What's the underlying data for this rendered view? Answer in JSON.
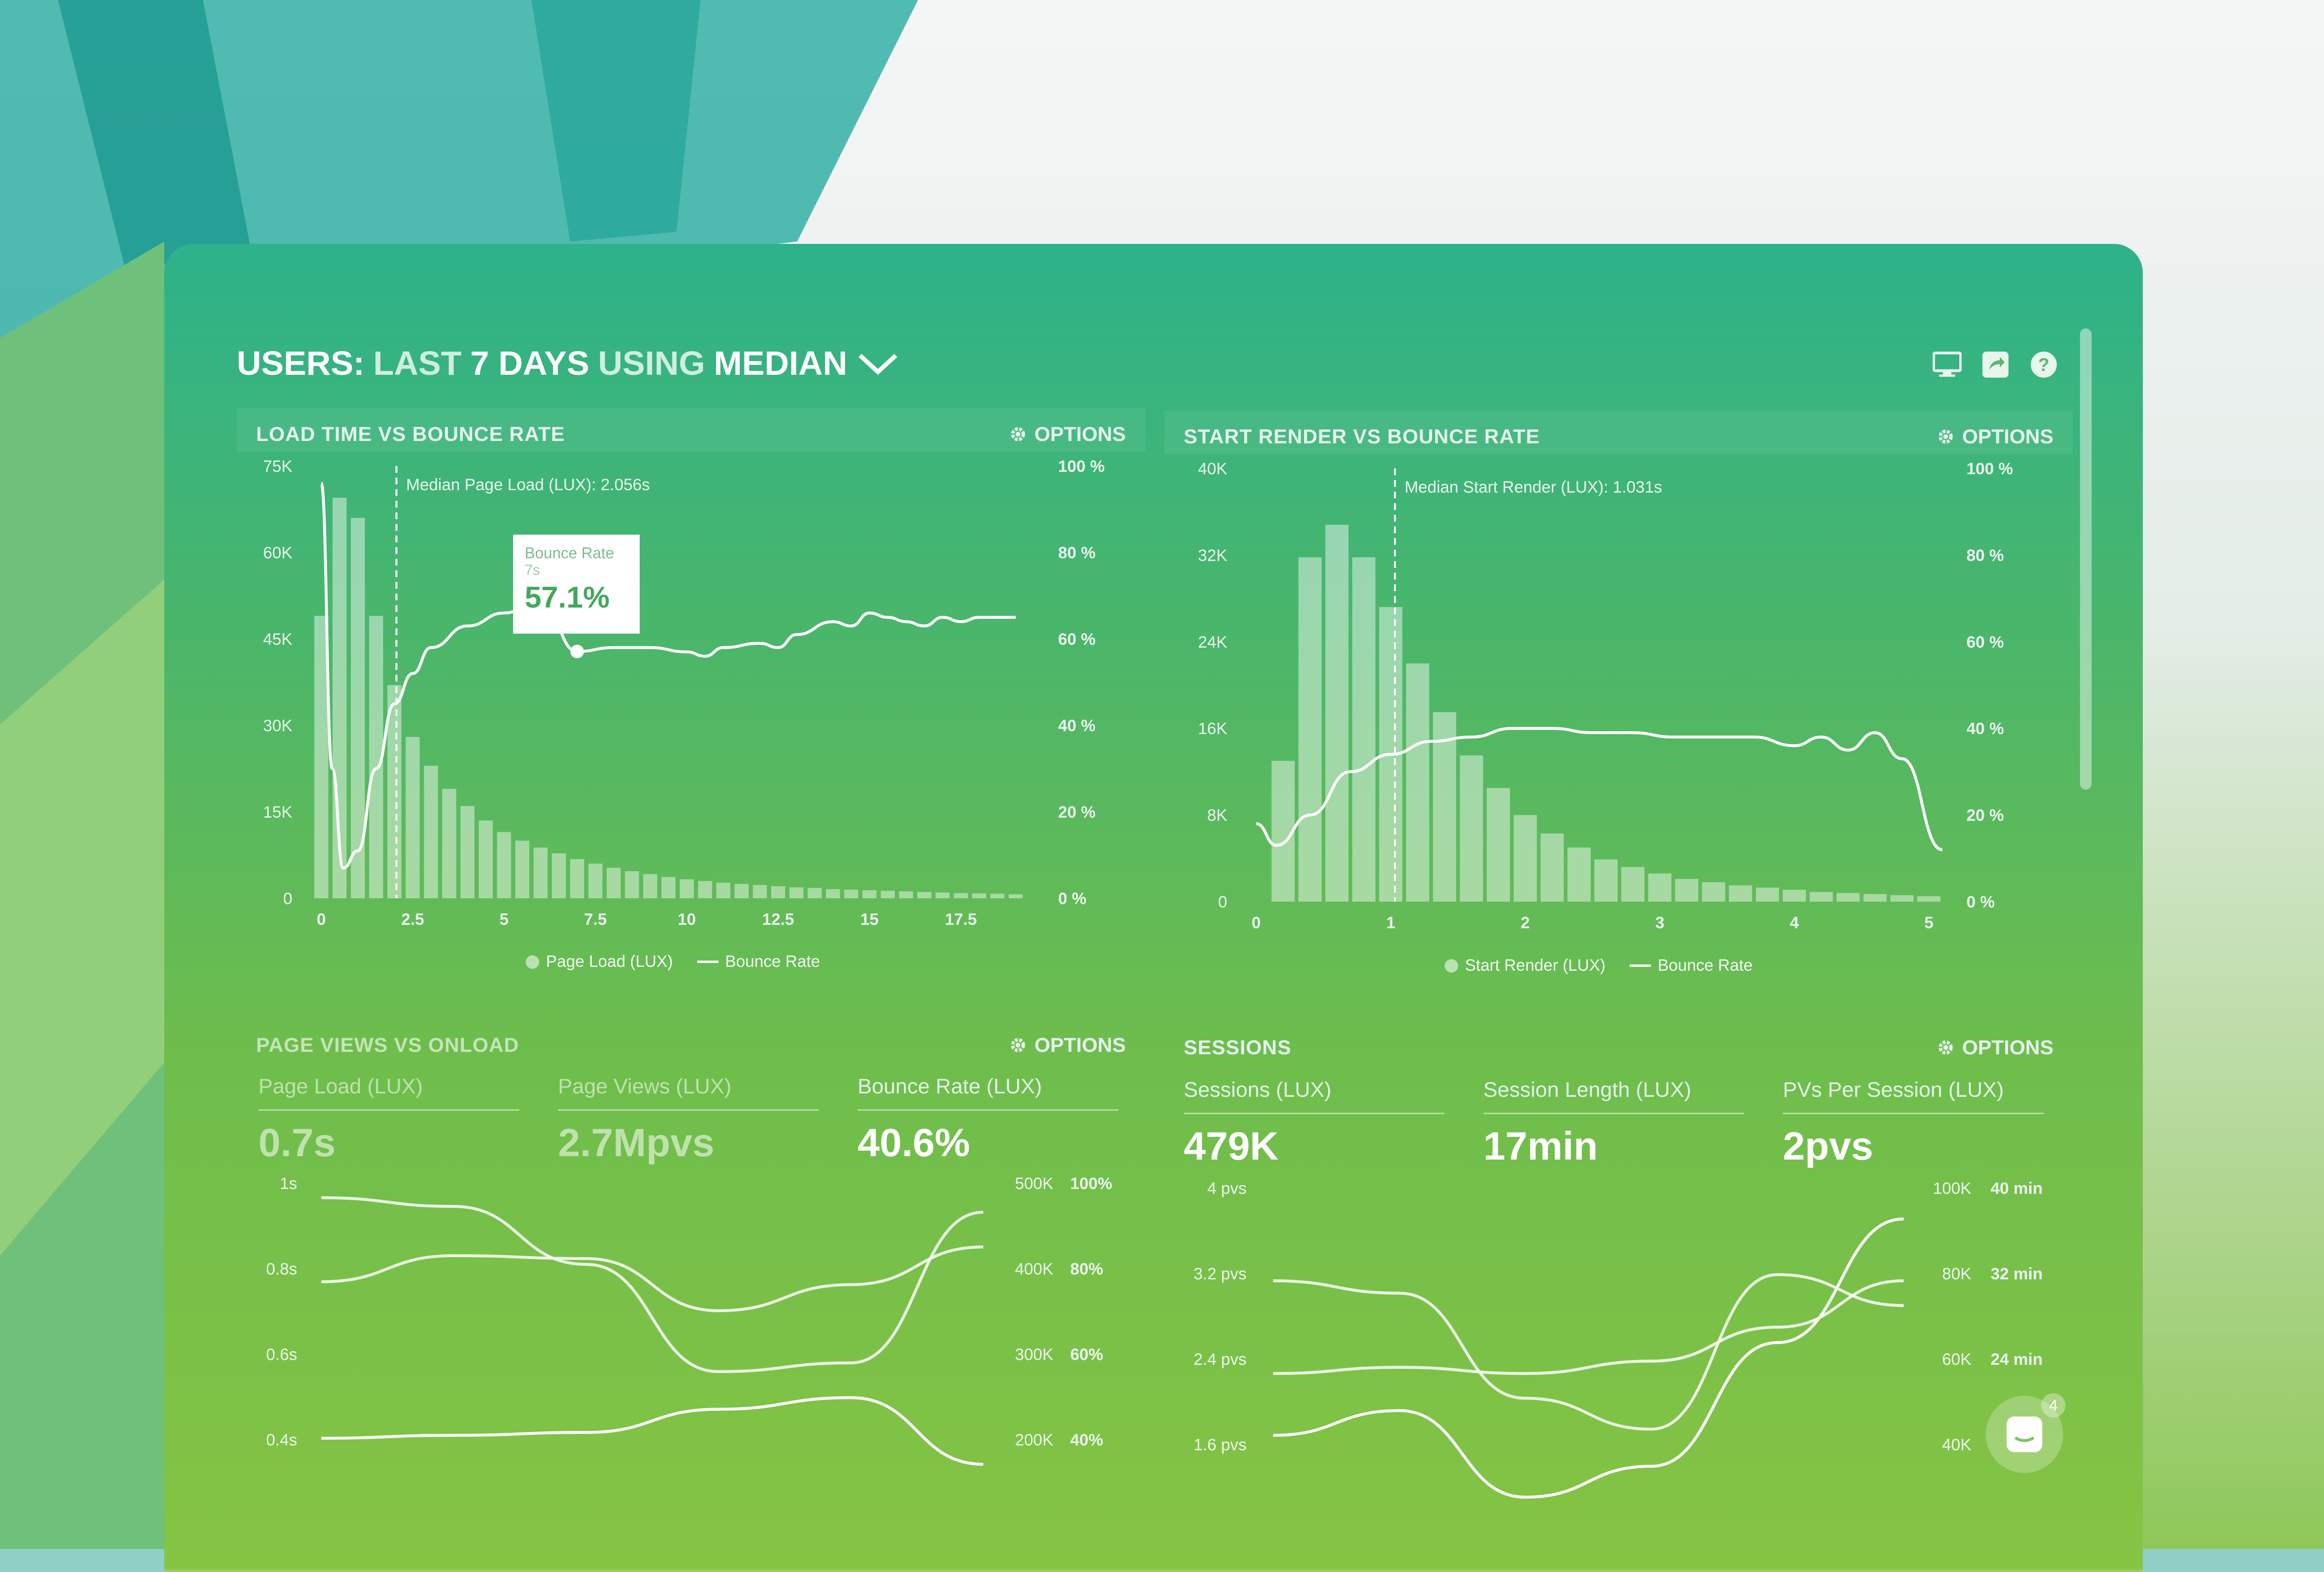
{
  "header": {
    "title_users": "USERS:",
    "title_last": "LAST",
    "title_days": "7 DAYS",
    "title_using": "USING",
    "title_median": "MEDIAN",
    "icons": [
      "monitor-icon",
      "share-icon",
      "help-icon"
    ]
  },
  "options_label": "OPTIONS",
  "panels": {
    "load": {
      "title": "LOAD TIME VS BOUNCE RATE",
      "median_label": "Median Page Load (LUX): 2.056s",
      "legend": [
        "Page Load (LUX)",
        "Bounce Rate"
      ],
      "tooltip": {
        "label": "Bounce Rate",
        "sub": "7s",
        "value": "57.1%"
      }
    },
    "render": {
      "title": "START RENDER VS BOUNCE RATE",
      "median_label": "Median Start Render (LUX): 1.031s",
      "legend": [
        "Start Render (LUX)",
        "Bounce Rate"
      ]
    },
    "pageviews": {
      "title": "PAGE VIEWS VS ONLOAD",
      "stats": [
        {
          "label": "Page Load (LUX)",
          "value": "0.7s"
        },
        {
          "label": "Page Views (LUX)",
          "value": "2.7Mpvs"
        },
        {
          "label": "Bounce Rate (LUX)",
          "value": "40.6%"
        }
      ]
    },
    "sessions": {
      "title": "SESSIONS",
      "stats": [
        {
          "label": "Sessions (LUX)",
          "value": "479K"
        },
        {
          "label": "Session Length (LUX)",
          "value": "17min"
        },
        {
          "label": "PVs Per Session (LUX)",
          "value": "2pvs"
        }
      ]
    }
  },
  "chat_badge": "4",
  "colors": {
    "line": "#ffffff",
    "bar": "rgba(255,255,255,0.45)"
  },
  "chart_data": [
    {
      "type": "bar",
      "title": "LOAD TIME VS BOUNCE RATE",
      "x_ticks": [
        "0",
        "2.5",
        "5",
        "7.5",
        "10",
        "12.5",
        "15",
        "17.5"
      ],
      "y_left_ticks": [
        "0",
        "15K",
        "30K",
        "45K",
        "60K",
        "75K"
      ],
      "y_right_ticks": [
        "0 %",
        "20 %",
        "40 %",
        "60 %",
        "80 %",
        "100 %"
      ],
      "ylim": [
        0,
        75000
      ],
      "series": [
        {
          "name": "Page Load (LUX)",
          "kind": "bar",
          "x": [
            0,
            0.5,
            1,
            1.5,
            2,
            2.5,
            3,
            3.5,
            4,
            4.5,
            5,
            5.5,
            6,
            6.5,
            7,
            7.5,
            8,
            8.5,
            9,
            9.5,
            10,
            10.5,
            11,
            11.5,
            12,
            12.5,
            13,
            13.5,
            14,
            14.5,
            15,
            15.5,
            16,
            16.5,
            17,
            17.5,
            18,
            18.5,
            19
          ],
          "values": [
            49000,
            69500,
            66000,
            49000,
            37000,
            28000,
            23000,
            19000,
            16000,
            13500,
            11500,
            10000,
            8800,
            7800,
            6800,
            6000,
            5300,
            4700,
            4200,
            3700,
            3300,
            3000,
            2700,
            2500,
            2300,
            2100,
            1900,
            1800,
            1600,
            1500,
            1400,
            1300,
            1200,
            1100,
            1000,
            900,
            850,
            800,
            700
          ]
        },
        {
          "name": "Bounce Rate",
          "kind": "line",
          "x": [
            0,
            0.3,
            0.6,
            1,
            1.5,
            2,
            2.5,
            3,
            4,
            5,
            6,
            7,
            8,
            9,
            10,
            10.5,
            11,
            12,
            12.5,
            13,
            14,
            14.5,
            15,
            15.5,
            16,
            16.5,
            17,
            17.5,
            18,
            19
          ],
          "values": [
            96,
            30,
            7,
            11,
            30,
            45,
            52,
            58,
            63,
            66,
            69,
            57.1,
            58,
            58,
            57,
            56,
            58,
            59,
            58,
            61,
            64,
            63,
            66,
            65,
            64,
            63,
            65,
            64,
            65,
            65
          ]
        }
      ]
    },
    {
      "type": "bar",
      "title": "START RENDER VS BOUNCE RATE",
      "x_ticks": [
        "0",
        "1",
        "2",
        "3",
        "4",
        "5"
      ],
      "y_left_ticks": [
        "0",
        "8K",
        "16K",
        "24K",
        "32K",
        "40K"
      ],
      "y_right_ticks": [
        "0 %",
        "20 %",
        "40 %",
        "60 %",
        "80 %",
        "100 %"
      ],
      "ylim": [
        0,
        40000
      ],
      "series": [
        {
          "name": "Start Render (LUX)",
          "kind": "bar",
          "x": [
            0.2,
            0.4,
            0.6,
            0.8,
            1,
            1.2,
            1.4,
            1.6,
            1.8,
            2,
            2.2,
            2.4,
            2.6,
            2.8,
            3,
            3.2,
            3.4,
            3.6,
            3.8,
            4,
            4.2,
            4.4,
            4.6,
            4.8,
            5
          ],
          "values": [
            13000,
            31800,
            34800,
            31800,
            27200,
            22000,
            17500,
            13500,
            10500,
            8000,
            6300,
            5000,
            3900,
            3200,
            2600,
            2100,
            1800,
            1500,
            1300,
            1100,
            900,
            800,
            700,
            600,
            500
          ]
        },
        {
          "name": "Bounce Rate",
          "kind": "line",
          "x": [
            0,
            0.15,
            0.4,
            0.7,
            1,
            1.3,
            1.6,
            1.9,
            2.2,
            2.5,
            2.8,
            3.1,
            3.4,
            3.7,
            4,
            4.2,
            4.4,
            4.6,
            4.8,
            5.1
          ],
          "values": [
            18,
            13,
            20,
            30,
            34,
            37,
            38,
            40,
            40,
            39,
            39,
            38,
            38,
            38,
            36,
            38,
            35,
            39,
            33,
            12
          ]
        }
      ]
    },
    {
      "type": "line",
      "title": "PAGE VIEWS VS ONLOAD",
      "y_left_ticks": [
        "1s",
        "0.8s",
        "0.6s",
        "0.4s"
      ],
      "y_mid_ticks": [
        "500K",
        "400K",
        "300K",
        "200K"
      ],
      "y_right_ticks": [
        "100%",
        "80%",
        "60%",
        "40%"
      ],
      "series": [
        {
          "name": "Page Load (LUX)",
          "values": [
            0.66,
            0.75,
            0.74,
            0.56,
            0.65,
            0.78
          ]
        },
        {
          "name": "Page Views (LUX)",
          "values": [
            0.95,
            0.92,
            0.72,
            0.35,
            0.38,
            0.9
          ]
        },
        {
          "name": "Bounce Rate (LUX)",
          "values": [
            0.12,
            0.13,
            0.14,
            0.22,
            0.26,
            0.03
          ]
        }
      ]
    },
    {
      "type": "line",
      "title": "SESSIONS",
      "y_left_ticks": [
        "4 pvs",
        "3.2 pvs",
        "2.4 pvs",
        "1.6 pvs"
      ],
      "y_mid_ticks": [
        "100K",
        "80K",
        "60K",
        "40K"
      ],
      "y_right_ticks": [
        "40 min",
        "32 min",
        "24 min"
      ],
      "series": [
        {
          "name": "Sessions (LUX)",
          "values": [
            0.7,
            0.66,
            0.32,
            0.22,
            0.72,
            0.62
          ]
        },
        {
          "name": "Session Length (LUX)",
          "values": [
            0.4,
            0.42,
            0.4,
            0.44,
            0.55,
            0.7
          ]
        },
        {
          "name": "PVs Per Session (LUX)",
          "values": [
            0.2,
            0.28,
            0.0,
            0.1,
            0.5,
            0.9
          ]
        }
      ]
    }
  ]
}
